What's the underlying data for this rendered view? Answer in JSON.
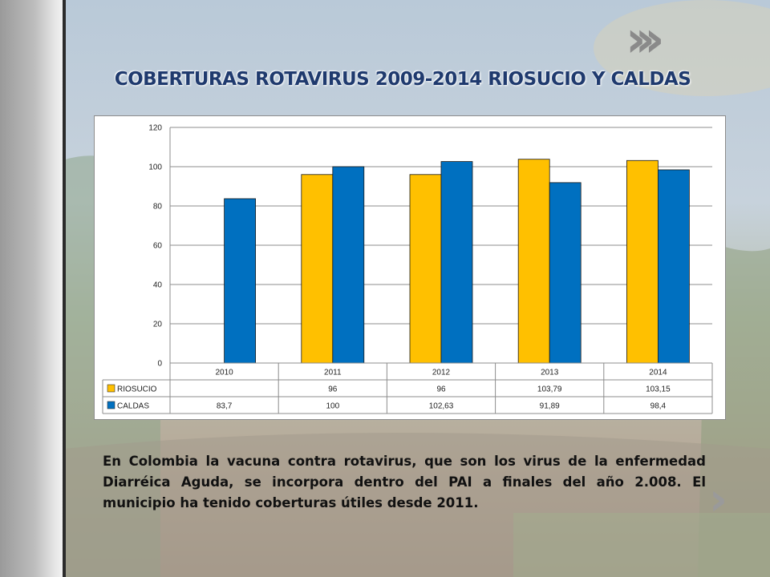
{
  "title": "COBERTURAS  ROTAVIRUS 2009-2014 RIOSUCIO Y CALDAS",
  "decor_icon": "chevron-triple-right-icon",
  "next_icon": "chevron-right-icon",
  "body_text": "En Colombia  la vacuna contra rotavirus, que son los virus de la enfermedad Diarréica Aguda, se incorpora dentro del PAI a finales del año 2.008.  El municipio ha tenido coberturas útiles desde 2011.",
  "colors": {
    "riosucio": "#FFC000",
    "caldas": "#0070C0",
    "title": "#1f3a6e"
  },
  "chart_data": {
    "type": "bar",
    "categories": [
      "2010",
      "2011",
      "2012",
      "2013",
      "2014"
    ],
    "series": [
      {
        "name": "RIOSUCIO",
        "color": "#FFC000",
        "values": [
          null,
          96,
          96,
          103.79,
          103.15
        ],
        "labels": [
          "",
          "96",
          "96",
          "103,79",
          "103,15"
        ]
      },
      {
        "name": "CALDAS",
        "color": "#0070C0",
        "values": [
          83.7,
          100,
          102.63,
          91.89,
          98.4
        ],
        "labels": [
          "83,7",
          "100",
          "102,63",
          "91,89",
          "98,4"
        ]
      }
    ],
    "ylim": [
      0,
      120
    ],
    "yticks": [
      0,
      20,
      40,
      60,
      80,
      100,
      120
    ],
    "grid": true,
    "legend": "data-table"
  }
}
